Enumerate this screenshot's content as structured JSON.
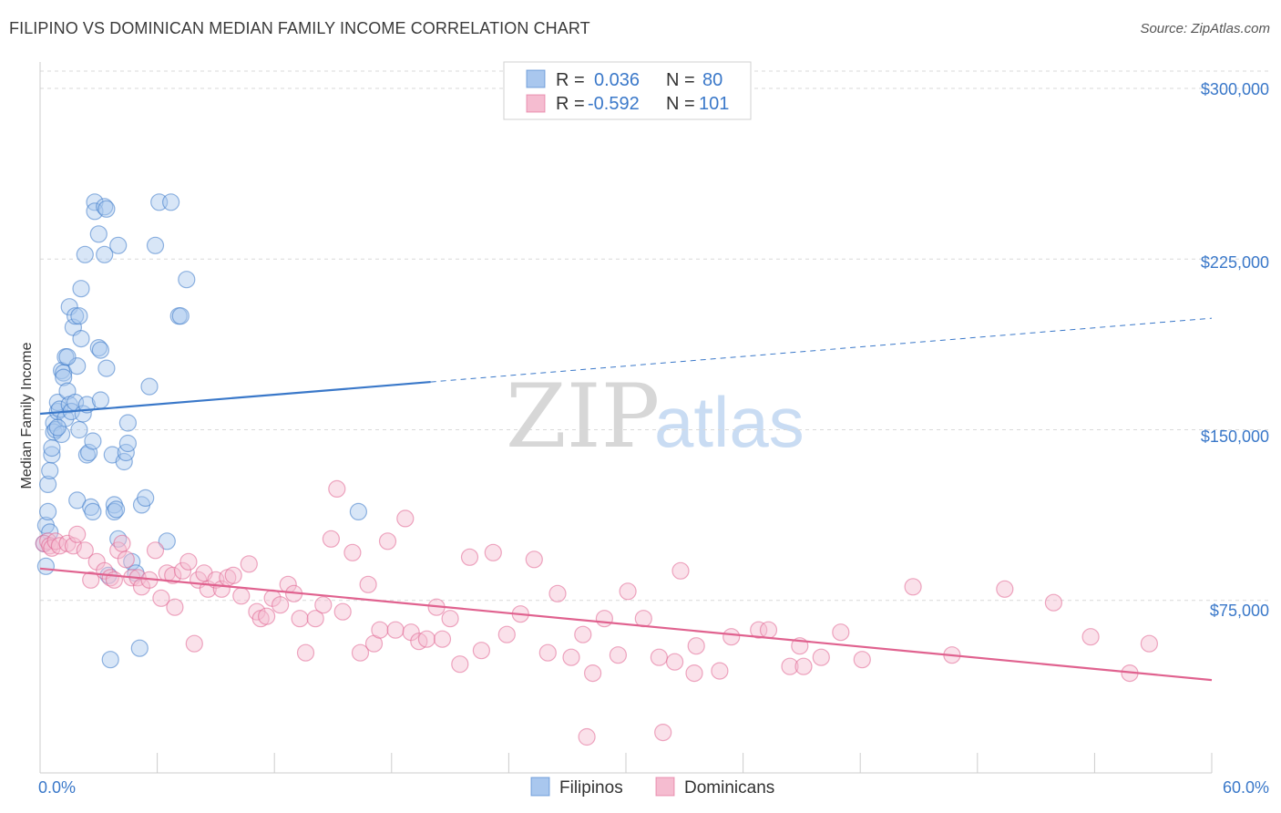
{
  "title": "FILIPINO VS DOMINICAN MEDIAN FAMILY INCOME CORRELATION CHART",
  "source": "Source: ZipAtlas.com",
  "watermark": {
    "zip": "ZIP",
    "atlas": "atlas"
  },
  "colors": {
    "blue": "#3a78c9",
    "blue_fill": "#a9c7ee",
    "pink": "#e0628f",
    "pink_fill": "#f5bcd0",
    "grid": "#d9d9d9"
  },
  "legend": {
    "rows": [
      {
        "r_label": "R =",
        "r_value": "0.036",
        "n_label": "N =",
        "n_value": "80"
      },
      {
        "r_label": "R =",
        "r_value": "-0.592",
        "n_label": "N =",
        "n_value": "101"
      }
    ]
  },
  "bottom_legend": {
    "series1": "Filipinos",
    "series2": "Dominicans"
  },
  "chart_data": {
    "type": "scatter",
    "title": "FILIPINO VS DOMINICAN MEDIAN FAMILY INCOME CORRELATION CHART",
    "xlabel": "",
    "ylabel": "Median Family Income",
    "xlim": [
      0,
      60
    ],
    "ylim": [
      0,
      310000
    ],
    "x_tick_labels": [
      "0.0%",
      "60.0%"
    ],
    "y_ticks": [
      75000,
      150000,
      225000,
      300000
    ],
    "y_tick_labels": [
      "$75,000",
      "$150,000",
      "$225,000",
      "$300,000"
    ],
    "grid": true,
    "series": [
      {
        "name": "Filipinos",
        "r": 0.036,
        "n": 80,
        "trend": {
          "x0": 0,
          "y0": 157000,
          "x1": 20,
          "y1": 171000,
          "x_dash_end": 60,
          "y_dash_end": 199000
        },
        "points": [
          [
            0.3,
            108000
          ],
          [
            0.5,
            105000
          ],
          [
            0.2,
            100000
          ],
          [
            0.3,
            90000
          ],
          [
            0.4,
            114000
          ],
          [
            0.4,
            126000
          ],
          [
            0.5,
            132000
          ],
          [
            0.6,
            139000
          ],
          [
            0.6,
            142000
          ],
          [
            0.7,
            153000
          ],
          [
            0.7,
            149000
          ],
          [
            0.8,
            150000
          ],
          [
            0.9,
            158000
          ],
          [
            0.9,
            162000
          ],
          [
            1.0,
            159000
          ],
          [
            1.1,
            148000
          ],
          [
            1.1,
            176000
          ],
          [
            1.2,
            175000
          ],
          [
            1.2,
            173000
          ],
          [
            1.3,
            182000
          ],
          [
            1.3,
            155000
          ],
          [
            1.4,
            167000
          ],
          [
            1.5,
            161000
          ],
          [
            1.5,
            204000
          ],
          [
            1.6,
            158000
          ],
          [
            1.7,
            195000
          ],
          [
            1.8,
            200000
          ],
          [
            1.8,
            162000
          ],
          [
            1.9,
            178000
          ],
          [
            1.9,
            119000
          ],
          [
            2.0,
            200000
          ],
          [
            2.0,
            150000
          ],
          [
            2.1,
            190000
          ],
          [
            2.1,
            212000
          ],
          [
            2.2,
            157000
          ],
          [
            2.3,
            227000
          ],
          [
            2.4,
            161000
          ],
          [
            2.4,
            139000
          ],
          [
            2.5,
            140000
          ],
          [
            2.6,
            116000
          ],
          [
            2.7,
            114000
          ],
          [
            2.7,
            145000
          ],
          [
            2.8,
            250000
          ],
          [
            2.8,
            246000
          ],
          [
            3.0,
            236000
          ],
          [
            3.0,
            186000
          ],
          [
            3.1,
            185000
          ],
          [
            3.1,
            163000
          ],
          [
            3.3,
            248000
          ],
          [
            3.3,
            227000
          ],
          [
            3.4,
            247000
          ],
          [
            3.4,
            177000
          ],
          [
            3.5,
            86000
          ],
          [
            3.6,
            49000
          ],
          [
            3.7,
            139000
          ],
          [
            3.8,
            117000
          ],
          [
            3.8,
            114000
          ],
          [
            4.0,
            231000
          ],
          [
            4.0,
            102000
          ],
          [
            4.3,
            136000
          ],
          [
            4.4,
            140000
          ],
          [
            4.5,
            153000
          ],
          [
            4.5,
            144000
          ],
          [
            4.7,
            92000
          ],
          [
            4.9,
            87000
          ],
          [
            5.1,
            54000
          ],
          [
            5.2,
            117000
          ],
          [
            5.4,
            120000
          ],
          [
            5.6,
            169000
          ],
          [
            5.9,
            231000
          ],
          [
            6.1,
            250000
          ],
          [
            6.7,
            250000
          ],
          [
            6.5,
            101000
          ],
          [
            7.1,
            200000
          ],
          [
            7.2,
            200000
          ],
          [
            7.5,
            216000
          ],
          [
            16.3,
            114000
          ],
          [
            3.9,
            115000
          ],
          [
            1.4,
            182000
          ],
          [
            0.9,
            151000
          ]
        ]
      },
      {
        "name": "Dominicans",
        "r": -0.592,
        "n": 101,
        "trend": {
          "x0": 0,
          "y0": 89000,
          "x1": 60,
          "y1": 40000
        },
        "points": [
          [
            0.2,
            100000
          ],
          [
            0.4,
            101000
          ],
          [
            0.5,
            99000
          ],
          [
            0.6,
            98000
          ],
          [
            0.8,
            101000
          ],
          [
            1.0,
            99000
          ],
          [
            1.4,
            100000
          ],
          [
            1.7,
            99000
          ],
          [
            1.9,
            104000
          ],
          [
            2.3,
            97000
          ],
          [
            2.6,
            84000
          ],
          [
            2.9,
            92000
          ],
          [
            3.3,
            88000
          ],
          [
            3.6,
            85000
          ],
          [
            3.8,
            84000
          ],
          [
            4.0,
            97000
          ],
          [
            4.2,
            100000
          ],
          [
            4.4,
            93000
          ],
          [
            4.7,
            85000
          ],
          [
            5.0,
            85000
          ],
          [
            5.2,
            81000
          ],
          [
            5.6,
            84000
          ],
          [
            5.9,
            97000
          ],
          [
            6.2,
            76000
          ],
          [
            6.5,
            87000
          ],
          [
            6.8,
            86000
          ],
          [
            6.9,
            72000
          ],
          [
            7.3,
            88000
          ],
          [
            7.6,
            92000
          ],
          [
            7.9,
            56000
          ],
          [
            8.1,
            84000
          ],
          [
            8.4,
            87000
          ],
          [
            8.6,
            80000
          ],
          [
            9.0,
            84000
          ],
          [
            9.3,
            80000
          ],
          [
            9.6,
            85000
          ],
          [
            9.9,
            86000
          ],
          [
            10.3,
            77000
          ],
          [
            10.7,
            91000
          ],
          [
            11.1,
            70000
          ],
          [
            11.3,
            67000
          ],
          [
            11.6,
            68000
          ],
          [
            11.9,
            76000
          ],
          [
            12.3,
            73000
          ],
          [
            12.7,
            82000
          ],
          [
            13.0,
            78000
          ],
          [
            13.3,
            67000
          ],
          [
            13.6,
            52000
          ],
          [
            14.1,
            67000
          ],
          [
            14.5,
            73000
          ],
          [
            14.9,
            102000
          ],
          [
            15.2,
            124000
          ],
          [
            15.5,
            70000
          ],
          [
            16.0,
            96000
          ],
          [
            16.4,
            52000
          ],
          [
            16.8,
            82000
          ],
          [
            17.1,
            56000
          ],
          [
            17.4,
            62000
          ],
          [
            17.8,
            101000
          ],
          [
            18.2,
            62000
          ],
          [
            18.7,
            111000
          ],
          [
            19.0,
            61000
          ],
          [
            19.4,
            57000
          ],
          [
            19.8,
            58000
          ],
          [
            20.3,
            72000
          ],
          [
            20.6,
            58000
          ],
          [
            21.0,
            67000
          ],
          [
            21.5,
            47000
          ],
          [
            22.0,
            94000
          ],
          [
            22.6,
            53000
          ],
          [
            23.2,
            96000
          ],
          [
            23.9,
            60000
          ],
          [
            24.6,
            69000
          ],
          [
            25.3,
            93000
          ],
          [
            26.0,
            52000
          ],
          [
            26.5,
            78000
          ],
          [
            27.2,
            50000
          ],
          [
            27.8,
            60000
          ],
          [
            28.3,
            43000
          ],
          [
            28.9,
            67000
          ],
          [
            29.6,
            51000
          ],
          [
            30.1,
            79000
          ],
          [
            30.9,
            67000
          ],
          [
            31.7,
            50000
          ],
          [
            32.8,
            88000
          ],
          [
            33.6,
            55000
          ],
          [
            34.8,
            44000
          ],
          [
            35.4,
            59000
          ],
          [
            36.8,
            62000
          ],
          [
            37.3,
            62000
          ],
          [
            38.4,
            46000
          ],
          [
            38.9,
            55000
          ],
          [
            40.0,
            50000
          ],
          [
            41.0,
            61000
          ],
          [
            42.1,
            49000
          ],
          [
            44.7,
            81000
          ],
          [
            46.7,
            51000
          ],
          [
            49.4,
            80000
          ],
          [
            51.9,
            74000
          ],
          [
            53.8,
            59000
          ],
          [
            56.8,
            56000
          ]
        ]
      }
    ],
    "extra_pink_points_low": [
      [
        28.0,
        15000
      ],
      [
        31.9,
        17000
      ],
      [
        32.5,
        48000
      ],
      [
        33.5,
        43000
      ],
      [
        39.1,
        46000
      ],
      [
        55.8,
        43000
      ]
    ]
  }
}
